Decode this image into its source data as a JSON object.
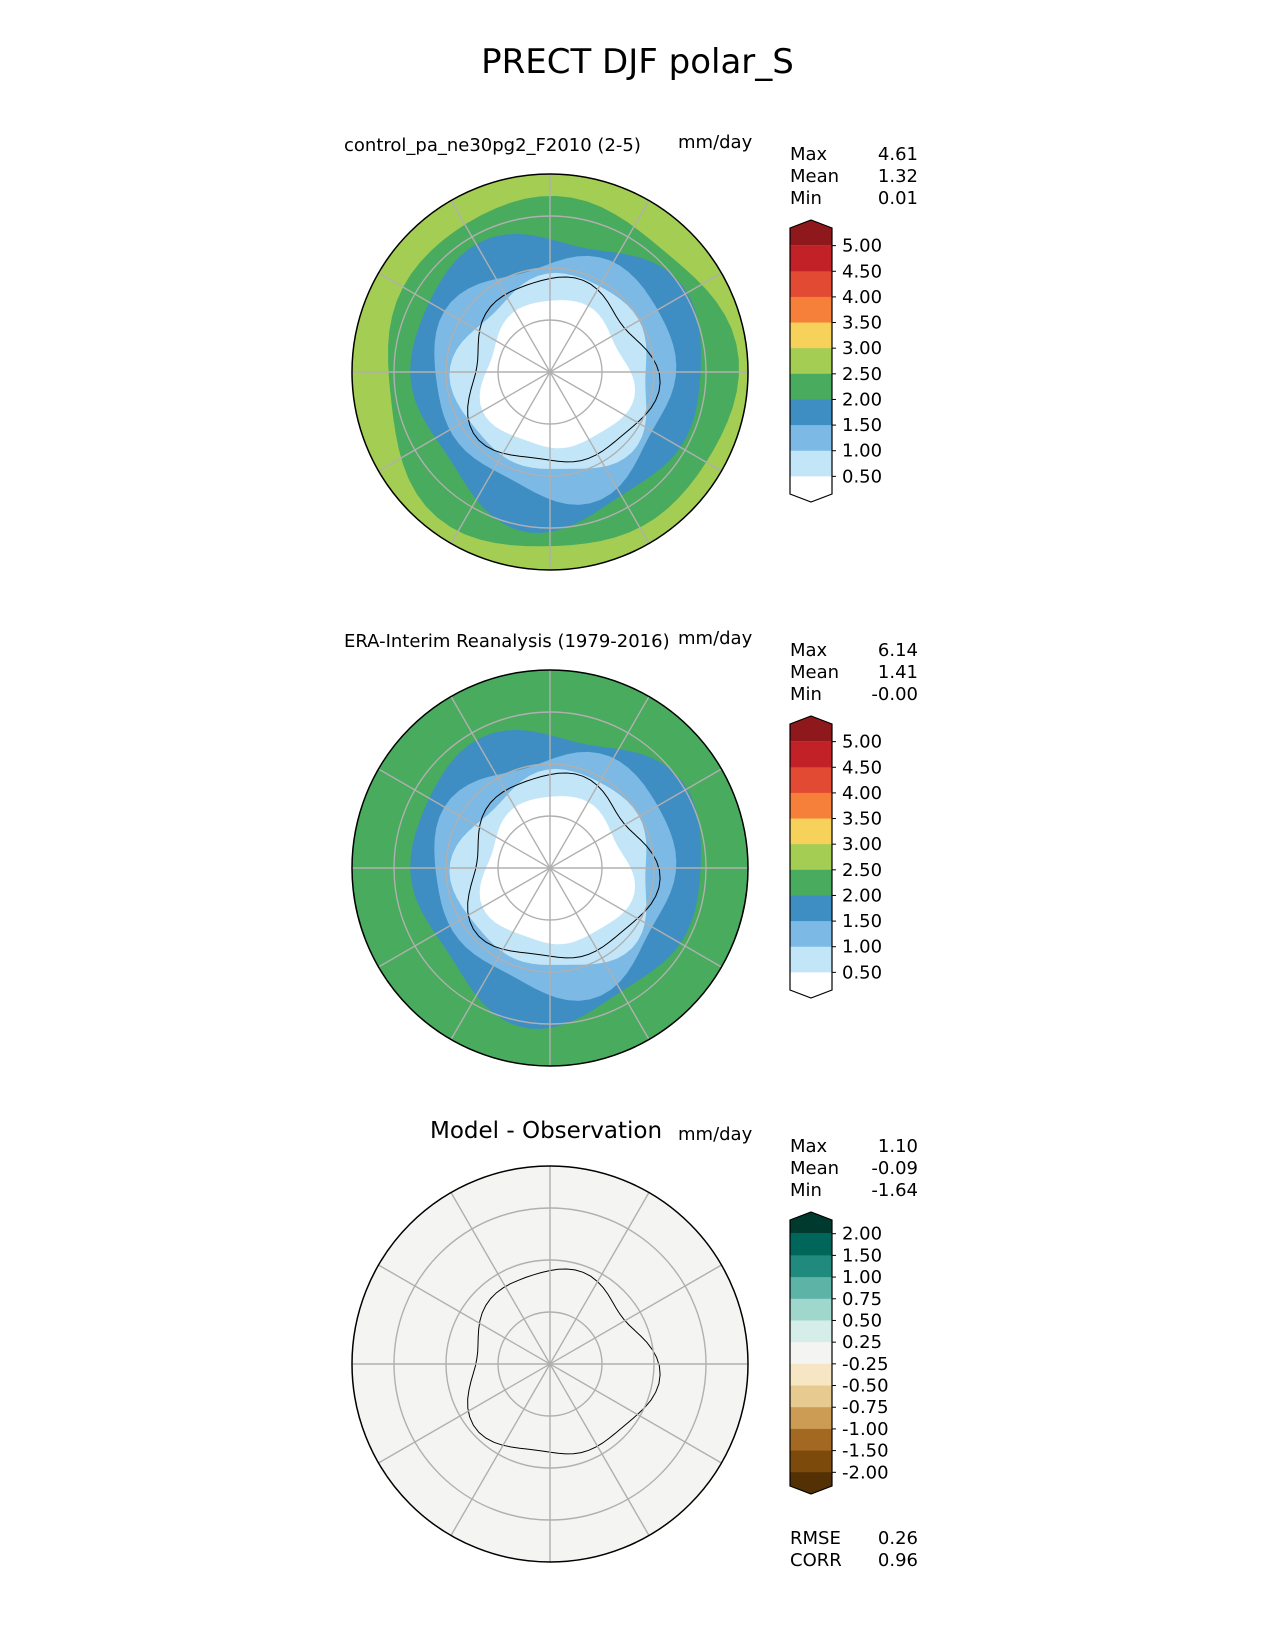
{
  "title": "PRECT DJF polar_S",
  "panels": [
    {
      "title": "control_pa_ne30pg2_F2010 (2-5)",
      "units": "mm/day",
      "stats": [
        [
          "Max",
          "4.61"
        ],
        [
          "Mean",
          "1.32"
        ],
        [
          "Min",
          "0.01"
        ]
      ],
      "colorbar": {
        "ticks": [
          "5.00",
          "4.50",
          "4.00",
          "3.50",
          "3.00",
          "2.50",
          "2.00",
          "1.50",
          "1.00",
          "0.50"
        ],
        "colors": [
          "#8e181c",
          "#c12127",
          "#e34a33",
          "#f6803a",
          "#f7d25a",
          "#a3cd53",
          "#48ab5d",
          "#3e8ec4",
          "#7cb9e4",
          "#c2e6f8",
          "#ffffff"
        ]
      },
      "map_colors": [
        "#a3cd53",
        "#48ab5d",
        "#3e8ec4",
        "#7cb9e4",
        "#c2e6f8",
        "#ffffff"
      ]
    },
    {
      "title": "ERA-Interim Reanalysis (1979-2016)",
      "units": "mm/day",
      "stats": [
        [
          "Max",
          "6.14"
        ],
        [
          "Mean",
          "1.41"
        ],
        [
          "Min",
          "-0.00"
        ]
      ],
      "colorbar": {
        "ticks": [
          "5.00",
          "4.50",
          "4.00",
          "3.50",
          "3.00",
          "2.50",
          "2.00",
          "1.50",
          "1.00",
          "0.50"
        ],
        "colors": [
          "#8e181c",
          "#c12127",
          "#e34a33",
          "#f6803a",
          "#f7d25a",
          "#a3cd53",
          "#48ab5d",
          "#3e8ec4",
          "#7cb9e4",
          "#c2e6f8",
          "#ffffff"
        ]
      },
      "map_colors": [
        "#48ab5d",
        "#48ab5d",
        "#3e8ec4",
        "#7cb9e4",
        "#c2e6f8",
        "#ffffff"
      ]
    },
    {
      "title": "Model - Observation",
      "units": "mm/day",
      "stats": [
        [
          "Max",
          "1.10"
        ],
        [
          "Mean",
          "-0.09"
        ],
        [
          "Min",
          "-1.64"
        ]
      ],
      "colorbar": {
        "ticks": [
          "2.00",
          "1.50",
          "1.00",
          "0.75",
          "0.50",
          "0.25",
          "-0.25",
          "-0.50",
          "-0.75",
          "-1.00",
          "-1.50",
          "-2.00"
        ],
        "colors": [
          "#00392d",
          "#00665a",
          "#218a7e",
          "#5cb3a6",
          "#9fd7cd",
          "#d5eee9",
          "#f4f4f2",
          "#f6e6c4",
          "#e6ca8f",
          "#cc9c54",
          "#a36821",
          "#7c4b0c",
          "#543005"
        ]
      },
      "map_colors": [
        "#f4f4f2",
        "#f4f4f2",
        "#f4f4f2",
        "#f4f4f2",
        "#f4f4f2",
        "#f4f4f2"
      ],
      "metrics": [
        [
          "RMSE",
          "0.26"
        ],
        [
          "CORR",
          "0.96"
        ]
      ]
    }
  ],
  "chart_data": [
    {
      "type": "heatmap",
      "projection": "polar_S",
      "title": "control_pa_ne30pg2_F2010 (2-5)",
      "units": "mm/day",
      "levels": [
        0.5,
        1.0,
        1.5,
        2.0,
        2.5,
        3.0,
        3.5,
        4.0,
        4.5,
        5.0
      ],
      "max": 4.61,
      "mean": 1.32,
      "min": 0.01
    },
    {
      "type": "heatmap",
      "projection": "polar_S",
      "title": "ERA-Interim Reanalysis (1979-2016)",
      "units": "mm/day",
      "levels": [
        0.5,
        1.0,
        1.5,
        2.0,
        2.5,
        3.0,
        3.5,
        4.0,
        4.5,
        5.0
      ],
      "max": 6.14,
      "mean": 1.41,
      "min": -0.0
    },
    {
      "type": "heatmap",
      "projection": "polar_S",
      "title": "Model - Observation",
      "units": "mm/day",
      "levels": [
        -2.0,
        -1.5,
        -1.0,
        -0.75,
        -0.5,
        -0.25,
        0.25,
        0.5,
        0.75,
        1.0,
        1.5,
        2.0
      ],
      "max": 1.1,
      "mean": -0.09,
      "min": -1.64,
      "rmse": 0.26,
      "corr": 0.96
    }
  ]
}
